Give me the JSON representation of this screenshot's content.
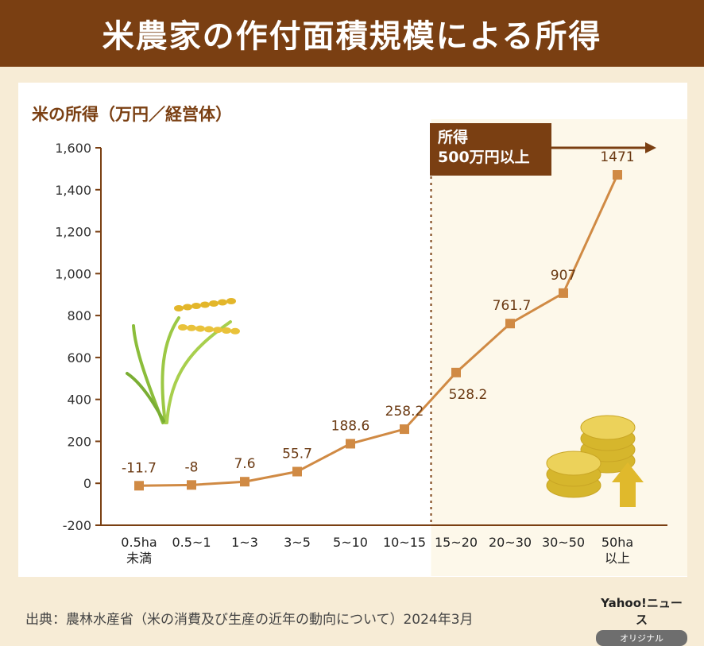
{
  "header": {
    "title": "米農家の作付面積規模による所得"
  },
  "chart_data": {
    "type": "line",
    "ylabel": "米の所得（万円／経営体）",
    "categories": [
      "0.5ha\n未満",
      "0.5~1",
      "1~3",
      "3~5",
      "5~10",
      "10~15",
      "15~20",
      "20~30",
      "30~50",
      "50ha\n以上"
    ],
    "values": [
      -11.7,
      -8,
      7.6,
      55.7,
      188.6,
      258.2,
      528.2,
      761.7,
      907,
      1471
    ],
    "value_labels": [
      "-11.7",
      "-8",
      "7.6",
      "55.7",
      "188.6",
      "258.2",
      "528.2",
      "761.7",
      "907",
      "1471"
    ],
    "ylim": [
      -200,
      1600
    ],
    "yticks": [
      -200,
      0,
      200,
      400,
      600,
      800,
      1000,
      1200,
      1400,
      1600
    ],
    "ytick_labels": [
      "-200",
      "0",
      "200",
      "400",
      "600",
      "800",
      "1,000",
      "1,200",
      "1,400",
      "1,600"
    ],
    "annotation": {
      "line1": "所得",
      "line2": "500万円以上",
      "from_category_index": 6
    },
    "colors": {
      "line": "#d08a44",
      "marker": "#d08a44",
      "axis": "#7a3f12",
      "highlight": "#fdf8ea"
    }
  },
  "footer": {
    "source": "出典：農林水産省（米の消費及び生産の近年の動向について）2024年3月"
  },
  "logo": {
    "top": "Yahoo!ニュース",
    "badge": "オリジナル"
  }
}
